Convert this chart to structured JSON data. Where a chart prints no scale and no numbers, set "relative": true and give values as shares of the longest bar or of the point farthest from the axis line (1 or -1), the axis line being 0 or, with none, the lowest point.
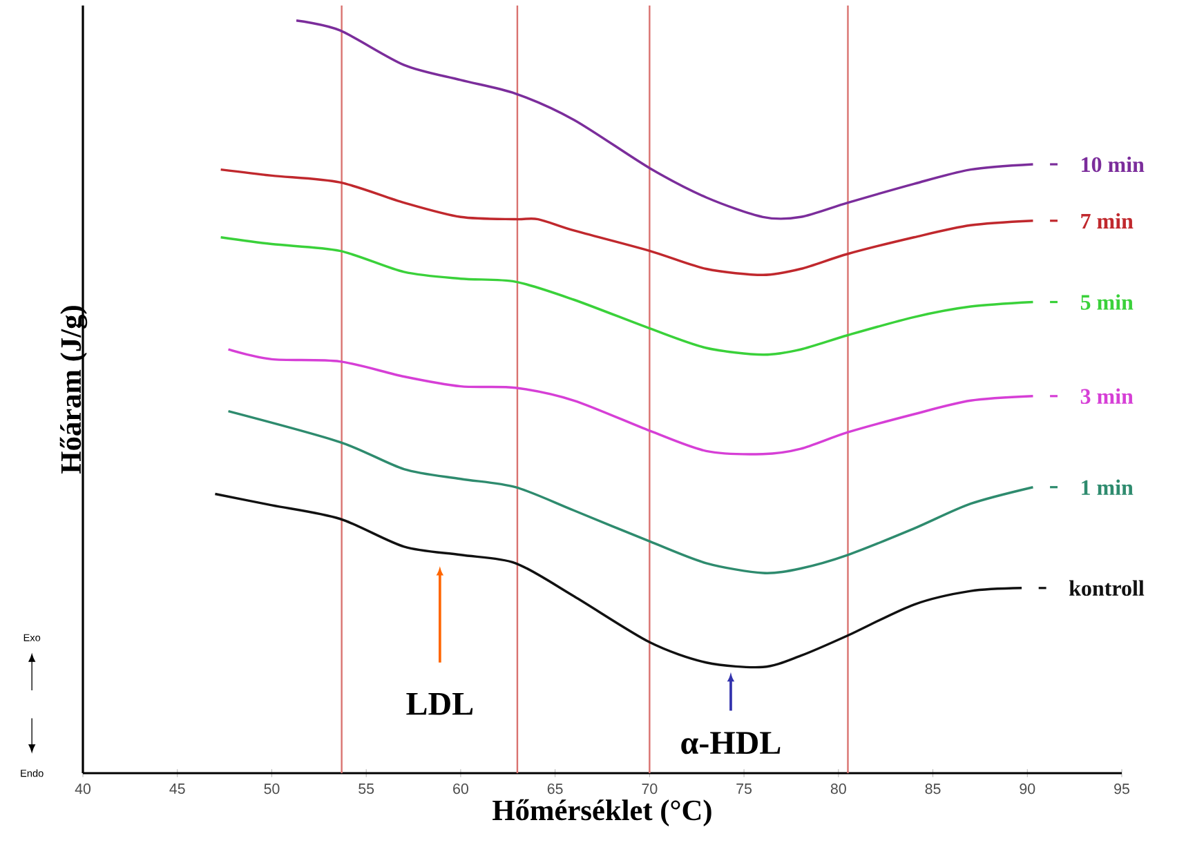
{
  "chart_data": {
    "type": "line",
    "relative": true,
    "xlabel": "Hőmérséklet (°C)",
    "ylabel": "Hőáram (J/g)",
    "legend": "right",
    "xlim": [
      40,
      95
    ],
    "xticks": [
      40,
      45,
      50,
      55,
      60,
      65,
      70,
      75,
      80,
      85,
      90,
      95
    ],
    "series": [
      {
        "name": "10 min",
        "color": "#7b2d9b",
        "x": [
          51.3,
          53.6,
          57,
          60,
          62.9,
          66,
          70,
          73,
          76,
          78,
          80.5,
          84,
          87,
          90.3
        ],
        "values": [
          1.0,
          0.987,
          0.941,
          0.921,
          0.903,
          0.868,
          0.804,
          0.765,
          0.739,
          0.739,
          0.758,
          0.783,
          0.802,
          0.809
        ]
      },
      {
        "name": "7 min",
        "color": "#c0282d",
        "x": [
          47.3,
          50,
          53.6,
          57,
          60,
          62.9,
          64.1,
          66,
          70,
          73,
          76,
          78,
          80.5,
          84,
          87,
          90.3
        ],
        "values": [
          0.802,
          0.794,
          0.785,
          0.758,
          0.739,
          0.736,
          0.736,
          0.721,
          0.694,
          0.67,
          0.662,
          0.67,
          0.69,
          0.712,
          0.728,
          0.734
        ]
      },
      {
        "name": "5 min",
        "color": "#3ad13a",
        "x": [
          47.3,
          50,
          53.6,
          57,
          60,
          62.9,
          66,
          70,
          73,
          76,
          78,
          80.5,
          84,
          87,
          90.3
        ],
        "values": [
          0.712,
          0.703,
          0.694,
          0.666,
          0.657,
          0.653,
          0.629,
          0.591,
          0.565,
          0.556,
          0.563,
          0.582,
          0.606,
          0.62,
          0.626
        ]
      },
      {
        "name": "3 min",
        "color": "#d63fd6",
        "x": [
          47.7,
          50,
          53.6,
          57,
          60,
          62.9,
          66,
          70,
          73,
          76,
          78,
          80.5,
          84,
          87,
          90.3
        ],
        "values": [
          0.563,
          0.55,
          0.547,
          0.527,
          0.514,
          0.512,
          0.495,
          0.455,
          0.428,
          0.424,
          0.431,
          0.453,
          0.477,
          0.495,
          0.501
        ]
      },
      {
        "name": "1 min",
        "color": "#2e8b6e",
        "x": [
          47.7,
          53.6,
          57,
          60,
          62.9,
          66,
          70,
          73,
          76,
          78,
          80.5,
          84,
          87,
          90.3
        ],
        "values": [
          0.481,
          0.44,
          0.404,
          0.391,
          0.38,
          0.349,
          0.308,
          0.279,
          0.266,
          0.272,
          0.29,
          0.325,
          0.358,
          0.38
        ]
      },
      {
        "name": "kontroll",
        "color": "#111111",
        "x": [
          47,
          50,
          53.6,
          57,
          60,
          62.9,
          66,
          70,
          73,
          76,
          78,
          80.5,
          84,
          87,
          89.7
        ],
        "values": [
          0.371,
          0.356,
          0.338,
          0.301,
          0.29,
          0.279,
          0.235,
          0.174,
          0.147,
          0.141,
          0.156,
          0.183,
          0.224,
          0.242,
          0.246
        ]
      }
    ],
    "ref_lines": [
      {
        "axis": "x",
        "value": 53.7,
        "color": "#d9726f"
      },
      {
        "axis": "x",
        "value": 63,
        "color": "#d9726f"
      },
      {
        "axis": "x",
        "value": 70,
        "color": "#d9726f"
      },
      {
        "axis": "x",
        "value": 80.5,
        "color": "#d9726f"
      }
    ],
    "annotations": [
      "LDL",
      "α-HDL",
      "Exo",
      "Endo"
    ]
  }
}
